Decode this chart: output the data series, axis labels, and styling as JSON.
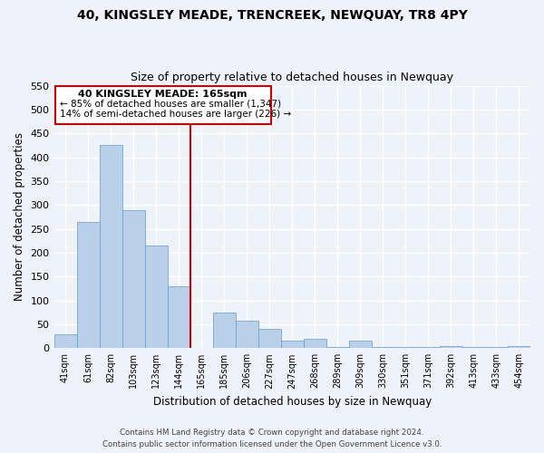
{
  "title": "40, KINGSLEY MEADE, TRENCREEK, NEWQUAY, TR8 4PY",
  "subtitle": "Size of property relative to detached houses in Newquay",
  "xlabel": "Distribution of detached houses by size in Newquay",
  "ylabel": "Number of detached properties",
  "bar_labels": [
    "41sqm",
    "61sqm",
    "82sqm",
    "103sqm",
    "123sqm",
    "144sqm",
    "165sqm",
    "185sqm",
    "206sqm",
    "227sqm",
    "247sqm",
    "268sqm",
    "289sqm",
    "309sqm",
    "330sqm",
    "351sqm",
    "371sqm",
    "392sqm",
    "413sqm",
    "433sqm",
    "454sqm"
  ],
  "bar_values": [
    30,
    265,
    425,
    290,
    215,
    130,
    0,
    75,
    58,
    40,
    15,
    20,
    3,
    15,
    3,
    3,
    3,
    4,
    3,
    3,
    4
  ],
  "bar_color": "#b8d0e8",
  "bar_edge_color": "#6699cc",
  "highlight_line_color": "#cc0000",
  "highlight_bar_index": 6,
  "annotation_title": "40 KINGSLEY MEADE: 165sqm",
  "annotation_line1": "← 85% of detached houses are smaller (1,347)",
  "annotation_line2": "14% of semi-detached houses are larger (226) →",
  "ylim": [
    0,
    550
  ],
  "yticks": [
    0,
    50,
    100,
    150,
    200,
    250,
    300,
    350,
    400,
    450,
    500,
    550
  ],
  "footnote1": "Contains HM Land Registry data © Crown copyright and database right 2024.",
  "footnote2": "Contains public sector information licensed under the Open Government Licence v3.0.",
  "bg_color": "#eef2f9"
}
